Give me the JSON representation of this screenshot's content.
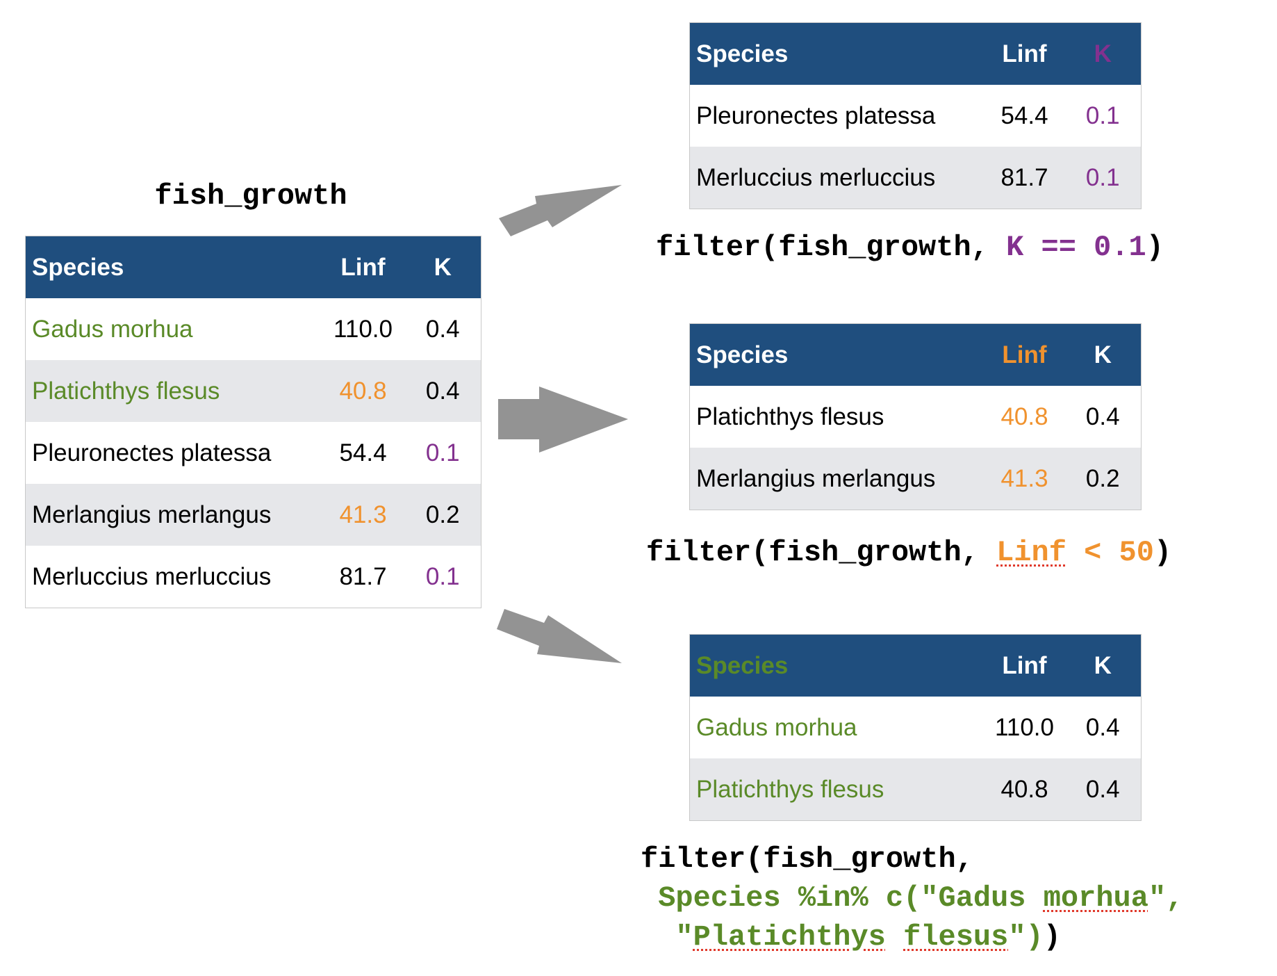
{
  "source": {
    "title": "fish_growth",
    "headers": [
      "Species",
      "Linf",
      "K"
    ],
    "rows": [
      [
        "Gadus morhua",
        "110.0",
        "0.4"
      ],
      [
        "Platichthys flesus",
        "40.8",
        "0.4"
      ],
      [
        "Pleuronectes platessa",
        "54.4",
        "0.1"
      ],
      [
        "Merlangius merlangus",
        "41.3",
        "0.2"
      ],
      [
        "Merluccius merluccius",
        "81.7",
        "0.1"
      ]
    ]
  },
  "result_k": {
    "headers": [
      "Species",
      "Linf",
      "K"
    ],
    "rows": [
      [
        "Pleuronectes platessa",
        "54.4",
        "0.1"
      ],
      [
        "Merluccius merluccius",
        "81.7",
        "0.1"
      ]
    ],
    "code": {
      "prefix": "filter(fish_growth, ",
      "condition": "K == 0.1",
      "suffix": ")"
    }
  },
  "result_linf": {
    "headers": [
      "Species",
      "Linf",
      "K"
    ],
    "rows": [
      [
        "Platichthys flesus",
        "40.8",
        "0.4"
      ],
      [
        "Merlangius merlangus",
        "41.3",
        "0.2"
      ]
    ],
    "code": {
      "prefix": "filter(fish_growth, ",
      "var": "Linf",
      "condition_rest": " < 50",
      "suffix": ")"
    }
  },
  "result_species": {
    "headers": [
      "Species",
      "Linf",
      "K"
    ],
    "rows": [
      [
        "Gadus morhua",
        "110.0",
        "0.4"
      ],
      [
        "Platichthys flesus",
        "40.8",
        "0.4"
      ]
    ],
    "code": {
      "line1": "filter(fish_growth,",
      "line2_pre": "Species %in% c(\"Gadus ",
      "line2_word": "morhua",
      "line2_post": "\",",
      "line3_quote": "\"",
      "line3_word1": "Platichthys",
      "line3_space": " ",
      "line3_word2": "flesus",
      "line3_post": "\")",
      "line3_close": ")"
    }
  },
  "colors": {
    "header_bg": "#1f4e7e",
    "stripe": "#e6e7ea",
    "green": "#5a8a28",
    "orange": "#f0922e",
    "purple": "#83318f",
    "arrow": "#939393"
  }
}
